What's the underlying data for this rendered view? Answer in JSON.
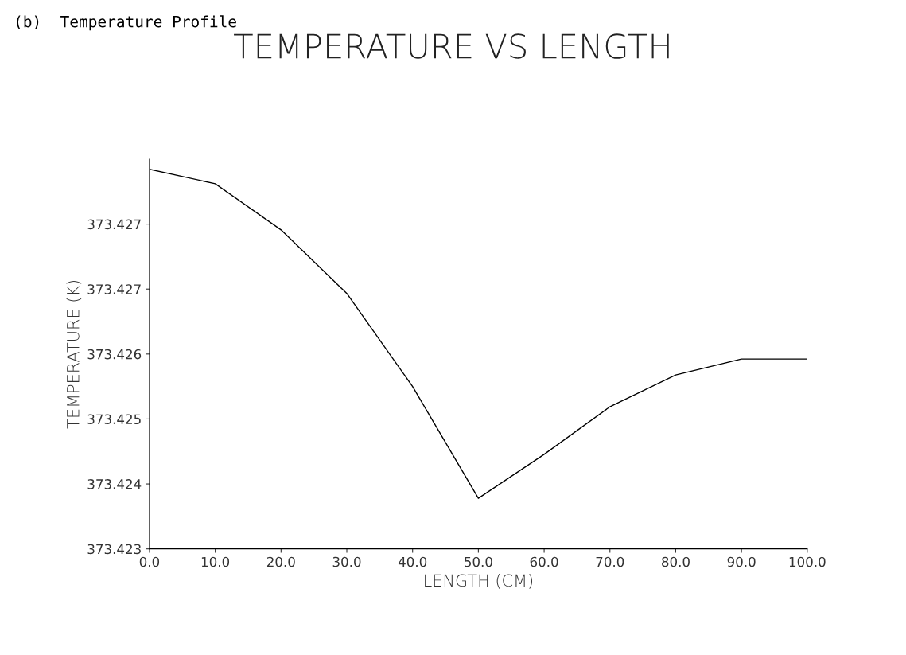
{
  "chart_data": {
    "type": "line",
    "title": "TEMPERATURE VS LENGTH",
    "xlabel": "LENGTH (CM)",
    "ylabel": "TEMPERATURE (K)",
    "annotations": [
      "(b)  Temperature Profile"
    ],
    "x": [
      0,
      10,
      20,
      30,
      40,
      50,
      60,
      70,
      80,
      90,
      100
    ],
    "series": [
      {
        "color": "#000000",
        "values": [
          373.42826,
          373.42806,
          373.42742,
          373.42654,
          373.42525,
          373.4237,
          373.42431,
          373.42497,
          373.42541,
          373.42563,
          373.42563
        ]
      }
    ],
    "xlim": [
      0,
      100
    ],
    "xticks": [
      {
        "value": 0,
        "label": "0.0"
      },
      {
        "value": 10,
        "label": "10.0"
      },
      {
        "value": 20,
        "label": "20.0"
      },
      {
        "value": 30,
        "label": "30.0"
      },
      {
        "value": 40,
        "label": "40.0"
      },
      {
        "value": 50,
        "label": "50.0"
      },
      {
        "value": 60,
        "label": "60.0"
      },
      {
        "value": 70,
        "label": "70.0"
      },
      {
        "value": 80,
        "label": "80.0"
      },
      {
        "value": 90,
        "label": "90.0"
      },
      {
        "value": 100,
        "label": "100.0"
      }
    ],
    "ylim": [
      373.423,
      373.4284
    ],
    "yticks": [
      {
        "value": 373.423,
        "label": "373.423"
      },
      {
        "value": 373.4239,
        "label": "373.424"
      },
      {
        "value": 373.4248,
        "label": "373.425"
      },
      {
        "value": 373.4257,
        "label": "373.426"
      },
      {
        "value": 373.4266,
        "label": "373.427"
      },
      {
        "value": 373.4275,
        "label": "373.427"
      }
    ],
    "grid": false,
    "legend": false,
    "marker": "none",
    "line_style": "solid"
  }
}
